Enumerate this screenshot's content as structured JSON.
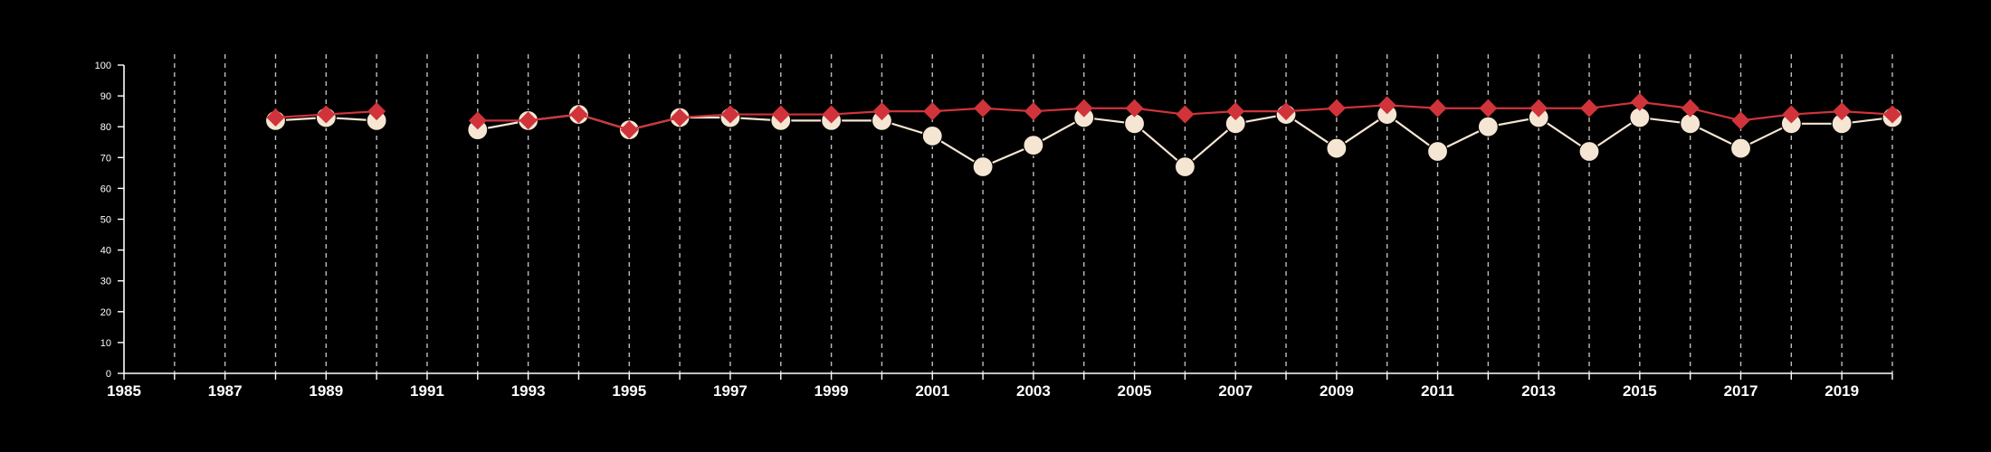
{
  "chart_data": {
    "type": "line",
    "title": "",
    "xlabel": "",
    "ylabel": "",
    "xlim": [
      1985,
      2020
    ],
    "ylim": [
      0,
      100
    ],
    "grid": "vertical dashed, every year",
    "x_ticks": [
      "1985",
      "1987",
      "1989",
      "1991",
      "1993",
      "1995",
      "1997",
      "1999",
      "2001",
      "2003",
      "2005",
      "2007",
      "2009",
      "2011",
      "2013",
      "2015",
      "2017",
      "2019"
    ],
    "y_ticks": [
      "0",
      "10",
      "20",
      "30",
      "40",
      "50",
      "60",
      "70",
      "80",
      "90",
      "100"
    ],
    "series": [
      {
        "color": "#f5e6d3",
        "marker": "circle",
        "x": [
          1988,
          1989,
          1990,
          1992,
          1993,
          1994,
          1995,
          1996,
          1997,
          1998,
          1999,
          2000,
          2001,
          2002,
          2003,
          2004,
          2005,
          2006,
          2007,
          2008,
          2009,
          2010,
          2011,
          2012,
          2013,
          2014,
          2015,
          2016,
          2017,
          2018,
          2019,
          2020
        ],
        "y": [
          82,
          83,
          82,
          79,
          82,
          84,
          79,
          83,
          83,
          82,
          82,
          82,
          77,
          67,
          74,
          83,
          81,
          67,
          81,
          84,
          73,
          84,
          72,
          80,
          83,
          72,
          83,
          81,
          73,
          81,
          81,
          83
        ]
      },
      {
        "color": "#d0343a",
        "marker": "diamond",
        "x": [
          1988,
          1989,
          1990,
          1992,
          1993,
          1994,
          1995,
          1996,
          1997,
          1998,
          1999,
          2000,
          2001,
          2002,
          2003,
          2004,
          2005,
          2006,
          2007,
          2008,
          2009,
          2010,
          2011,
          2012,
          2013,
          2014,
          2015,
          2016,
          2017,
          2018,
          2019,
          2020
        ],
        "y": [
          83,
          84,
          85,
          82,
          82,
          84,
          79,
          83,
          84,
          84,
          84,
          85,
          85,
          86,
          85,
          86,
          86,
          84,
          85,
          85,
          86,
          87,
          86,
          86,
          86,
          86,
          88,
          86,
          82,
          84,
          85,
          84
        ]
      }
    ]
  }
}
